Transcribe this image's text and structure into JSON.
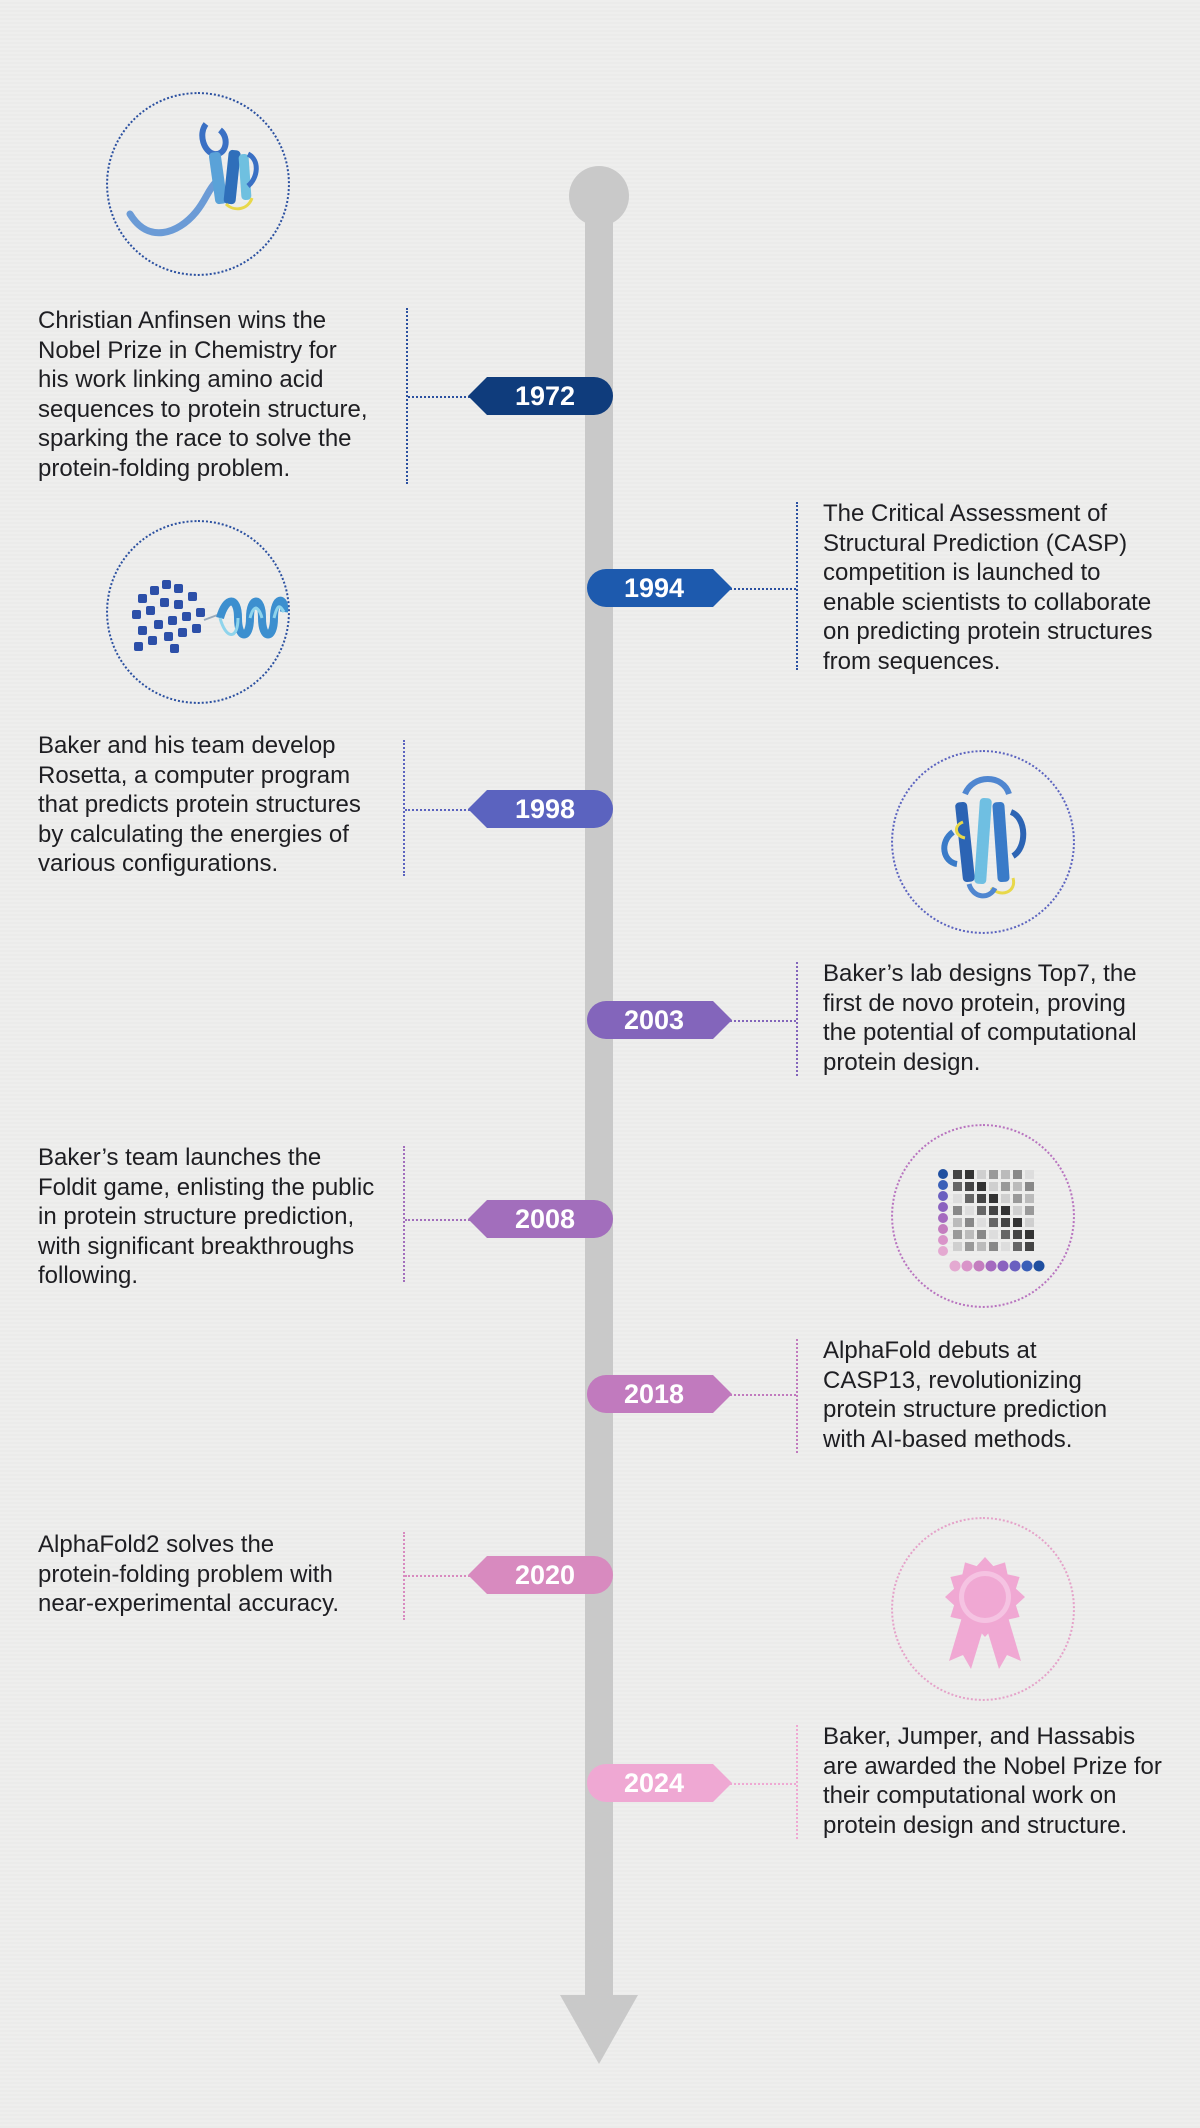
{
  "events": [
    {
      "year": "1972",
      "color": "#0f3c7c",
      "text": "Christian Anfinsen wins the\nNobel Prize in Chemistry for\nhis work linking amino acid\nsequences to protein structure,\nsparking the race to solve the\nprotein-folding problem.",
      "icon": "protein-ribbon-icon"
    },
    {
      "year": "1994",
      "color": "#1d5aae",
      "text": "The Critical Assessment of\nStructural Prediction (CASP)\ncompetition is launched to\nenable scientists to collaborate\non predicting protein structures\nfrom sequences.",
      "icon": "amino-acid-helix-icon"
    },
    {
      "year": "1998",
      "color": "#5b63bf",
      "text": "Baker and his team develop\nRosetta, a computer program\nthat predicts protein structures\nby calculating the energies of\nvarious configurations.",
      "icon": ""
    },
    {
      "year": "2003",
      "color": "#8365bb",
      "text": "Baker’s lab designs Top7, the\nfirst de novo protein, proving\nthe potential of computational\nprotein design.",
      "icon": "top7-protein-icon"
    },
    {
      "year": "2008",
      "color": "#a26ebc",
      "text": "Baker’s team launches the\nFoldit game, enlisting the public\nin protein structure prediction,\nwith significant breakthroughs\nfollowing.",
      "icon": "contact-map-icon"
    },
    {
      "year": "2018",
      "color": "#c17abe",
      "text": "AlphaFold debuts at\nCASP13, revolutionizing\nprotein structure prediction\nwith AI-based methods.",
      "icon": ""
    },
    {
      "year": "2020",
      "color": "#d88abf",
      "text": "AlphaFold2 solves the\nprotein-folding problem with\nnear-experimental accuracy.",
      "icon": "award-ribbon-icon"
    },
    {
      "year": "2024",
      "color": "#efa8d3",
      "text": "Baker, Jumper, and Hassabis\nare awarded the Nobel Prize for\ntheir computational work on\nprotein design and structure.",
      "icon": ""
    }
  ],
  "colors": {
    "axis": "#c9c9c9",
    "background": "#eeeeed"
  }
}
